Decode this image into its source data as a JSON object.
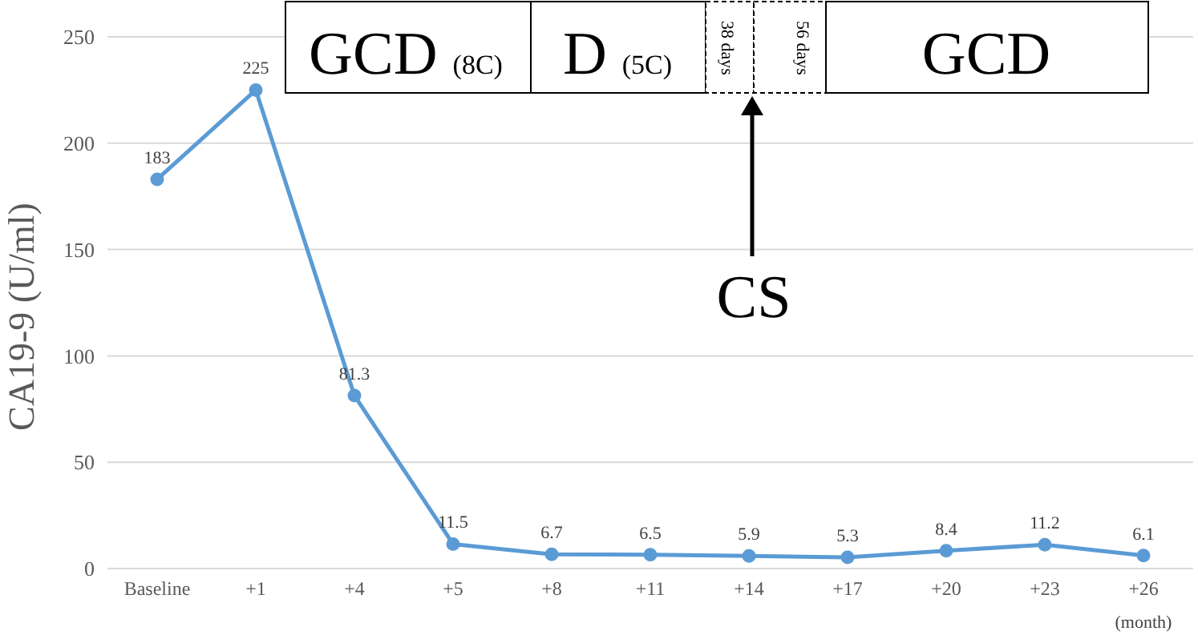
{
  "chart_data": {
    "type": "line",
    "ylabel": "CA19-9 (U/ml)",
    "categories": [
      "Baseline",
      "+1",
      "+4",
      "+5",
      "+8",
      "+11",
      "+14",
      "+17",
      "+20",
      "+23",
      "+26"
    ],
    "series": [
      {
        "color": "#5b9bd5",
        "values": [
          183,
          225,
          81.3,
          11.5,
          6.7,
          6.5,
          5.9,
          5.3,
          8.4,
          11.2,
          6.1
        ]
      }
    ],
    "ylim": [
      0,
      250
    ],
    "yticks": [
      0,
      50,
      100,
      150,
      200,
      250
    ],
    "grid": "y",
    "marker": "circle",
    "line_style": "solid",
    "data_labels": true,
    "legend": false,
    "annotations": [
      "GCD (8C)",
      "D (5C)",
      "38 days",
      "56 days",
      "GCD",
      "CS",
      "(month)"
    ]
  }
}
